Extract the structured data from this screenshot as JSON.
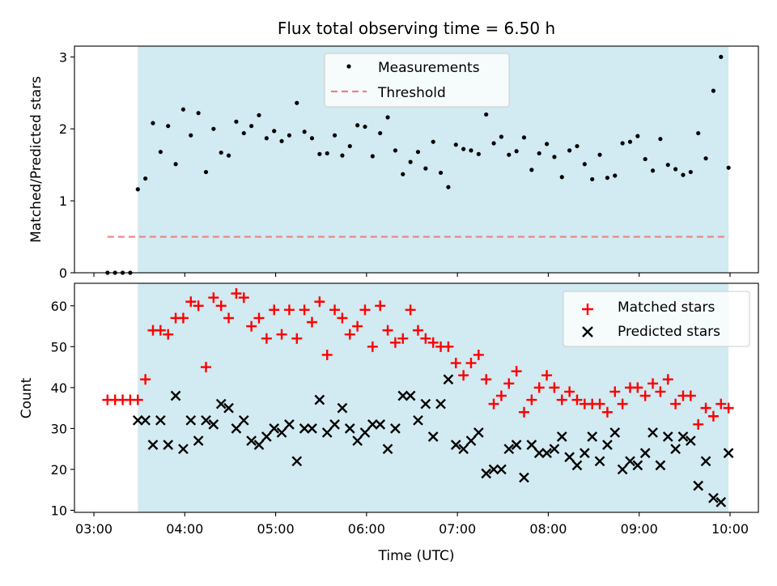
{
  "chart_data": [
    {
      "type": "scatter",
      "title": "Flux total observing time = 6.50 h",
      "ylabel": "Matched/Predicted stars",
      "ylim": [
        0,
        3.15
      ],
      "yticks": [
        "0",
        "1",
        "2",
        "3"
      ],
      "shaded_region": {
        "start": "03:29",
        "end": "09:59",
        "color": "#add8e6"
      },
      "legend": {
        "location": "top-center",
        "entries": [
          "Measurements",
          "Threshold"
        ]
      },
      "threshold": {
        "name": "Threshold",
        "value": 0.5,
        "color": "#f08080"
      },
      "series": [
        {
          "name": "Measurements",
          "color": "#000000",
          "x": [
            "03:09",
            "03:14",
            "03:19",
            "03:24",
            "03:29",
            "03:34",
            "03:39",
            "03:44",
            "03:49",
            "03:54",
            "03:59",
            "04:04",
            "04:09",
            "04:14",
            "04:19",
            "04:24",
            "04:29",
            "04:34",
            "04:39",
            "04:44",
            "04:49",
            "04:54",
            "04:59",
            "05:04",
            "05:09",
            "05:14",
            "05:19",
            "05:24",
            "05:29",
            "05:34",
            "05:39",
            "05:44",
            "05:49",
            "05:54",
            "05:59",
            "06:04",
            "06:09",
            "06:14",
            "06:19",
            "06:24",
            "06:29",
            "06:34",
            "06:39",
            "06:44",
            "06:49",
            "06:54",
            "06:59",
            "07:04",
            "07:09",
            "07:14",
            "07:19",
            "07:24",
            "07:29",
            "07:34",
            "07:39",
            "07:44",
            "07:49",
            "07:54",
            "07:59",
            "08:04",
            "08:09",
            "08:14",
            "08:19",
            "08:24",
            "08:29",
            "08:34",
            "08:39",
            "08:44",
            "08:49",
            "08:54",
            "08:59",
            "09:04",
            "09:09",
            "09:14",
            "09:19",
            "09:24",
            "09:29",
            "09:34",
            "09:39",
            "09:44",
            "09:49",
            "09:54",
            "09:59"
          ],
          "values": [
            0.0,
            0.0,
            0.0,
            0.0,
            1.16,
            1.31,
            2.08,
            1.68,
            2.04,
            1.51,
            2.27,
            1.91,
            2.22,
            1.4,
            2.0,
            1.67,
            1.63,
            2.1,
            1.94,
            2.04,
            2.19,
            1.87,
            1.97,
            1.83,
            1.91,
            2.36,
            1.96,
            1.87,
            1.65,
            1.66,
            1.91,
            1.63,
            1.76,
            2.05,
            2.03,
            1.62,
            1.94,
            2.16,
            1.7,
            1.37,
            1.54,
            1.68,
            1.45,
            1.82,
            1.39,
            1.19,
            1.78,
            1.72,
            1.7,
            1.65,
            2.2,
            1.8,
            1.89,
            1.64,
            1.69,
            1.88,
            1.43,
            1.66,
            1.79,
            1.61,
            1.33,
            1.7,
            1.76,
            1.51,
            1.3,
            1.64,
            1.32,
            1.35,
            1.8,
            1.82,
            1.9,
            1.58,
            1.42,
            1.86,
            1.5,
            1.44,
            1.36,
            1.4,
            1.94,
            1.59,
            2.53,
            3.0,
            1.46
          ]
        }
      ]
    },
    {
      "type": "scatter",
      "xlabel": "Time (UTC)",
      "ylabel": "Count",
      "ylim": [
        9.5,
        65.5
      ],
      "yticks": [
        "10",
        "20",
        "30",
        "40",
        "50",
        "60"
      ],
      "xticks": [
        "03:00",
        "04:00",
        "05:00",
        "06:00",
        "07:00",
        "08:00",
        "09:00",
        "10:00"
      ],
      "shaded_region": {
        "start": "03:29",
        "end": "09:59",
        "color": "#add8e6"
      },
      "legend": {
        "location": "top-right",
        "entries": [
          "Matched stars",
          "Predicted stars"
        ]
      },
      "series": [
        {
          "name": "Matched stars",
          "marker": "+",
          "color": "#ff0000",
          "x": [
            "03:09",
            "03:14",
            "03:19",
            "03:24",
            "03:29",
            "03:34",
            "03:39",
            "03:44",
            "03:49",
            "03:54",
            "03:59",
            "04:04",
            "04:09",
            "04:14",
            "04:19",
            "04:24",
            "04:29",
            "04:34",
            "04:39",
            "04:44",
            "04:49",
            "04:54",
            "04:59",
            "05:04",
            "05:09",
            "05:14",
            "05:19",
            "05:24",
            "05:29",
            "05:34",
            "05:39",
            "05:44",
            "05:49",
            "05:54",
            "05:59",
            "06:04",
            "06:09",
            "06:14",
            "06:19",
            "06:24",
            "06:29",
            "06:34",
            "06:39",
            "06:44",
            "06:49",
            "06:54",
            "06:59",
            "07:04",
            "07:09",
            "07:14",
            "07:19",
            "07:24",
            "07:29",
            "07:34",
            "07:39",
            "07:44",
            "07:49",
            "07:54",
            "07:59",
            "08:04",
            "08:09",
            "08:14",
            "08:19",
            "08:24",
            "08:29",
            "08:34",
            "08:39",
            "08:44",
            "08:49",
            "08:54",
            "08:59",
            "09:04",
            "09:09",
            "09:14",
            "09:19",
            "09:24",
            "09:29",
            "09:34",
            "09:39",
            "09:44",
            "09:49",
            "09:54",
            "09:59"
          ],
          "values": [
            37,
            37,
            37,
            37,
            37,
            42,
            54,
            54,
            53,
            57,
            57,
            61,
            60,
            45,
            62,
            60,
            57,
            63,
            62,
            55,
            57,
            52,
            59,
            53,
            59,
            52,
            59,
            56,
            61,
            48,
            59,
            57,
            53,
            55,
            59,
            50,
            60,
            54,
            51,
            52,
            59,
            54,
            52,
            51,
            50,
            50,
            46,
            43,
            46,
            48,
            42,
            36,
            38,
            41,
            44,
            34,
            37,
            40,
            43,
            40,
            37,
            39,
            37,
            36,
            36,
            36,
            34,
            39,
            36,
            40,
            40,
            38,
            41,
            39,
            42,
            36,
            38,
            38,
            31,
            35,
            33,
            36,
            35
          ]
        },
        {
          "name": "Predicted stars",
          "marker": "x",
          "color": "#000000",
          "x": [
            "03:29",
            "03:34",
            "03:39",
            "03:44",
            "03:49",
            "03:54",
            "03:59",
            "04:04",
            "04:09",
            "04:14",
            "04:19",
            "04:24",
            "04:29",
            "04:34",
            "04:39",
            "04:44",
            "04:49",
            "04:54",
            "04:59",
            "05:04",
            "05:09",
            "05:14",
            "05:19",
            "05:24",
            "05:29",
            "05:34",
            "05:39",
            "05:44",
            "05:49",
            "05:54",
            "05:59",
            "06:04",
            "06:09",
            "06:14",
            "06:19",
            "06:24",
            "06:29",
            "06:34",
            "06:39",
            "06:44",
            "06:49",
            "06:54",
            "06:59",
            "07:04",
            "07:09",
            "07:14",
            "07:19",
            "07:24",
            "07:29",
            "07:34",
            "07:39",
            "07:44",
            "07:49",
            "07:54",
            "07:59",
            "08:04",
            "08:09",
            "08:14",
            "08:19",
            "08:24",
            "08:29",
            "08:34",
            "08:39",
            "08:44",
            "08:49",
            "08:54",
            "08:59",
            "09:04",
            "09:09",
            "09:14",
            "09:19",
            "09:24",
            "09:29",
            "09:34",
            "09:39",
            "09:44",
            "09:49",
            "09:54",
            "09:59"
          ],
          "values": [
            32,
            32,
            26,
            32,
            26,
            38,
            25,
            32,
            27,
            32,
            31,
            36,
            35,
            30,
            32,
            27,
            26,
            28,
            30,
            29,
            31,
            22,
            30,
            30,
            37,
            29,
            31,
            35,
            30,
            27,
            29,
            31,
            31,
            25,
            30,
            38,
            38,
            32,
            36,
            28,
            36,
            42,
            26,
            25,
            27,
            29,
            19,
            20,
            20,
            25,
            26,
            18,
            26,
            24,
            24,
            25,
            28,
            23,
            21,
            24,
            28,
            22,
            26,
            29,
            20,
            22,
            21,
            24,
            29,
            21,
            28,
            25,
            28,
            27,
            16,
            22,
            13,
            12,
            24
          ]
        }
      ]
    }
  ]
}
